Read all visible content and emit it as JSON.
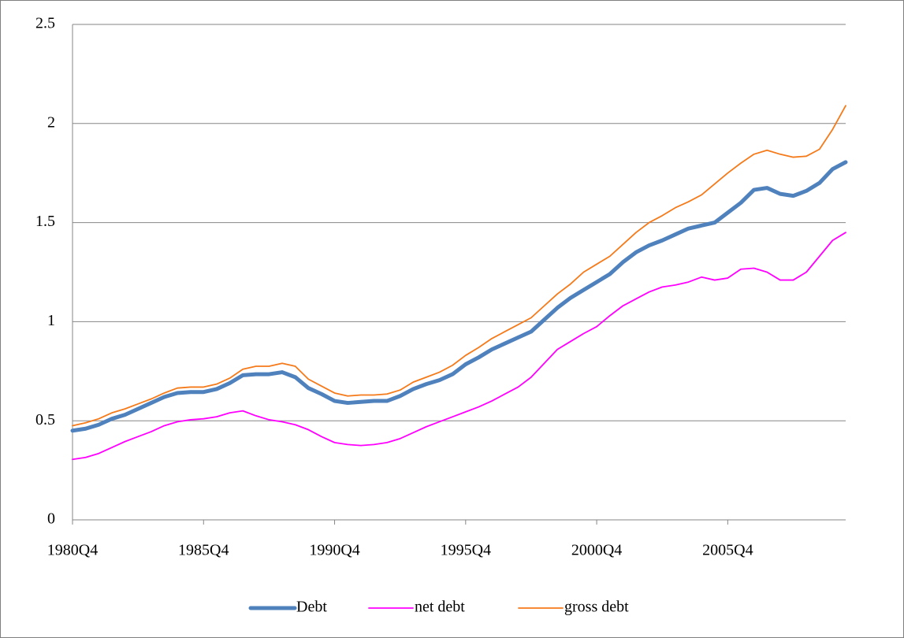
{
  "chart_data": {
    "type": "line",
    "categories": [
      "1980Q4",
      null,
      null,
      null,
      null,
      null,
      null,
      null,
      null,
      null,
      "1985Q4",
      null,
      null,
      null,
      null,
      null,
      null,
      null,
      null,
      null,
      "1990Q4",
      null,
      null,
      null,
      null,
      null,
      null,
      null,
      null,
      null,
      "1995Q4",
      null,
      null,
      null,
      null,
      null,
      null,
      null,
      null,
      null,
      "2000Q4",
      null,
      null,
      null,
      null,
      null,
      null,
      null,
      null,
      null,
      "2005Q4",
      null,
      null,
      null,
      null,
      null,
      null,
      null,
      null,
      null
    ],
    "series": [
      {
        "name": "Debt",
        "color": "#4f81bd",
        "width": 5,
        "values": [
          0.45,
          0.46,
          0.48,
          0.51,
          0.53,
          0.56,
          0.59,
          0.62,
          0.64,
          0.645,
          0.645,
          0.66,
          0.69,
          0.73,
          0.735,
          0.735,
          0.745,
          0.72,
          0.665,
          0.635,
          0.6,
          0.59,
          0.595,
          0.6,
          0.6,
          0.625,
          0.66,
          0.685,
          0.705,
          0.735,
          0.785,
          0.82,
          0.86,
          0.89,
          0.92,
          0.95,
          1.01,
          1.07,
          1.12,
          1.16,
          1.2,
          1.24,
          1.3,
          1.35,
          1.385,
          1.41,
          1.44,
          1.47,
          1.485,
          1.5,
          1.55,
          1.6,
          1.665,
          1.675,
          1.645,
          1.635,
          1.66,
          1.7,
          1.77,
          1.805
        ]
      },
      {
        "name": "net debt",
        "color": "#ff00ff",
        "width": 1.8,
        "values": [
          0.305,
          0.315,
          0.335,
          0.365,
          0.395,
          0.42,
          0.445,
          0.475,
          0.495,
          0.505,
          0.51,
          0.52,
          0.54,
          0.55,
          0.525,
          0.505,
          0.495,
          0.48,
          0.455,
          0.42,
          0.39,
          0.38,
          0.375,
          0.38,
          0.39,
          0.41,
          0.44,
          0.47,
          0.495,
          0.52,
          0.545,
          0.57,
          0.6,
          0.635,
          0.67,
          0.72,
          0.79,
          0.86,
          0.9,
          0.94,
          0.975,
          1.03,
          1.08,
          1.115,
          1.15,
          1.175,
          1.185,
          1.2,
          1.225,
          1.21,
          1.22,
          1.265,
          1.27,
          1.25,
          1.21,
          1.21,
          1.25,
          1.33,
          1.41,
          1.45
        ]
      },
      {
        "name": "gross debt",
        "color": "#f57a1a",
        "width": 1.8,
        "values": [
          0.475,
          0.49,
          0.51,
          0.54,
          0.56,
          0.585,
          0.61,
          0.64,
          0.665,
          0.67,
          0.67,
          0.685,
          0.715,
          0.76,
          0.775,
          0.775,
          0.79,
          0.775,
          0.71,
          0.675,
          0.64,
          0.625,
          0.63,
          0.63,
          0.635,
          0.655,
          0.695,
          0.72,
          0.745,
          0.78,
          0.83,
          0.87,
          0.915,
          0.95,
          0.985,
          1.02,
          1.08,
          1.14,
          1.19,
          1.25,
          1.29,
          1.33,
          1.39,
          1.45,
          1.5,
          1.535,
          1.575,
          1.605,
          1.64,
          1.695,
          1.75,
          1.8,
          1.845,
          1.865,
          1.845,
          1.83,
          1.835,
          1.87,
          1.97,
          2.09
        ]
      }
    ],
    "ylim": [
      0,
      2.5
    ],
    "yticks": [
      0,
      0.5,
      1,
      1.5,
      2,
      2.5
    ],
    "grid": true,
    "legend": "bottom"
  }
}
